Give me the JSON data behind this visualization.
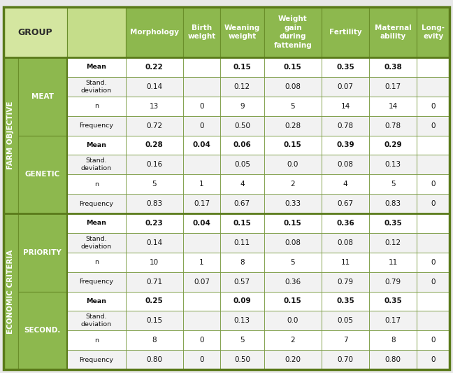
{
  "header_bg": "#8db84e",
  "header_light_bg": "#d4e6a0",
  "header_mid_bg": "#c5dd8a",
  "group_bg": "#8db84e",
  "border_color": "#6a8f2a",
  "border_thick_color": "#5a7a1a",
  "white": "#ffffff",
  "light_gray": "#f2f2f2",
  "col_headers": [
    "Morphology",
    "Birth\nweight",
    "Weaning\nweight",
    "Weight\ngain\nduring\nfattening",
    "Fertility",
    "Maternal\nability",
    "Long-\nevity"
  ],
  "groups": [
    {
      "group_label": "FARM OBJECTIVE",
      "subgroups": [
        {
          "label": "MEAT",
          "rows": [
            {
              "name": "Mean",
              "vals": [
                "0.22",
                "",
                "0.15",
                "0.15",
                "0.35",
                "0.38",
                ""
              ],
              "bold": true
            },
            {
              "name": "Stand.\ndeviation",
              "vals": [
                "0.14",
                "",
                "0.12",
                "0.08",
                "0.07",
                "0.17",
                ""
              ],
              "bold": false
            },
            {
              "name": "n",
              "vals": [
                "13",
                "0",
                "9",
                "5",
                "14",
                "14",
                "0"
              ],
              "bold": false
            },
            {
              "name": "Frequency",
              "vals": [
                "0.72",
                "0",
                "0.50",
                "0.28",
                "0.78",
                "0.78",
                "0"
              ],
              "bold": false
            }
          ]
        },
        {
          "label": "GENETIC",
          "rows": [
            {
              "name": "Mean",
              "vals": [
                "0.28",
                "0.04",
                "0.06",
                "0.15",
                "0.39",
                "0.29",
                ""
              ],
              "bold": true
            },
            {
              "name": "Stand.\ndeviation",
              "vals": [
                "0.16",
                "",
                "0.05",
                "0.0",
                "0.08",
                "0.13",
                ""
              ],
              "bold": false
            },
            {
              "name": "n",
              "vals": [
                "5",
                "1",
                "4",
                "2",
                "4",
                "5",
                "0"
              ],
              "bold": false
            },
            {
              "name": "Frequency",
              "vals": [
                "0.83",
                "0.17",
                "0.67",
                "0.33",
                "0.67",
                "0.83",
                "0"
              ],
              "bold": false
            }
          ]
        }
      ]
    },
    {
      "group_label": "ECONOMIC CRITERIA",
      "subgroups": [
        {
          "label": "PRIORITY",
          "rows": [
            {
              "name": "Mean",
              "vals": [
                "0.23",
                "0.04",
                "0.15",
                "0.15",
                "0.36",
                "0.35",
                ""
              ],
              "bold": true
            },
            {
              "name": "Stand.\ndeviation",
              "vals": [
                "0.14",
                "",
                "0.11",
                "0.08",
                "0.08",
                "0.12",
                ""
              ],
              "bold": false
            },
            {
              "name": "n",
              "vals": [
                "10",
                "1",
                "8",
                "5",
                "11",
                "11",
                "0"
              ],
              "bold": false
            },
            {
              "name": "Frequency",
              "vals": [
                "0.71",
                "0.07",
                "0.57",
                "0.36",
                "0.79",
                "0.79",
                "0"
              ],
              "bold": false
            }
          ]
        },
        {
          "label": "SECOND.",
          "rows": [
            {
              "name": "Mean",
              "vals": [
                "0.25",
                "",
                "0.09",
                "0.15",
                "0.35",
                "0.35",
                ""
              ],
              "bold": true
            },
            {
              "name": "Stand.\ndeviation",
              "vals": [
                "0.15",
                "",
                "0.13",
                "0.0",
                "0.05",
                "0.17",
                ""
              ],
              "bold": false
            },
            {
              "name": "n",
              "vals": [
                "8",
                "0",
                "5",
                "2",
                "7",
                "8",
                "0"
              ],
              "bold": false
            },
            {
              "name": "Frequency",
              "vals": [
                "0.80",
                "0",
                "0.50",
                "0.20",
                "0.70",
                "0.80",
                "0"
              ],
              "bold": false
            }
          ]
        }
      ]
    }
  ]
}
